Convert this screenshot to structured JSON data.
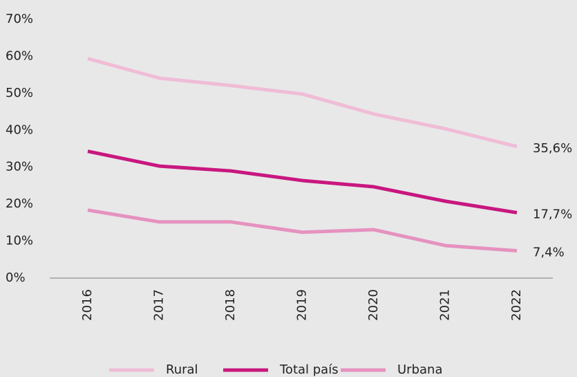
{
  "chart_data": {
    "type": "line",
    "categories": [
      "2016",
      "2017",
      "2018",
      "2019",
      "2020",
      "2021",
      "2022"
    ],
    "series": [
      {
        "name": "Rural",
        "color": "#f0bcd6",
        "values": [
          59.4,
          54.1,
          52.1,
          49.8,
          44.4,
          40.4,
          35.6
        ],
        "value_labels": [
          null,
          null,
          null,
          null,
          null,
          null,
          "35,6%"
        ]
      },
      {
        "name": "Total país",
        "color": "#c8177f",
        "values": [
          34.3,
          30.3,
          29.0,
          26.4,
          24.7,
          20.8,
          17.7
        ],
        "value_labels": [
          null,
          null,
          null,
          null,
          null,
          null,
          "17,7%"
        ]
      },
      {
        "name": "Urbana",
        "color": "#e592bf",
        "values": [
          18.4,
          15.2,
          15.2,
          12.4,
          13.1,
          8.8,
          7.4
        ],
        "value_labels": [
          null,
          null,
          null,
          null,
          null,
          null,
          "7,4%"
        ]
      }
    ],
    "ylim": [
      0,
      70
    ],
    "yticks": [
      {
        "value": 0,
        "label": "0%"
      },
      {
        "value": 10,
        "label": "10%"
      },
      {
        "value": 20,
        "label": "20%"
      },
      {
        "value": 30,
        "label": "30%"
      },
      {
        "value": 40,
        "label": "40%"
      },
      {
        "value": 50,
        "label": "50%"
      },
      {
        "value": 60,
        "label": "60%"
      },
      {
        "value": 70,
        "label": "70%"
      }
    ],
    "grid": false,
    "legend": "bottom"
  }
}
